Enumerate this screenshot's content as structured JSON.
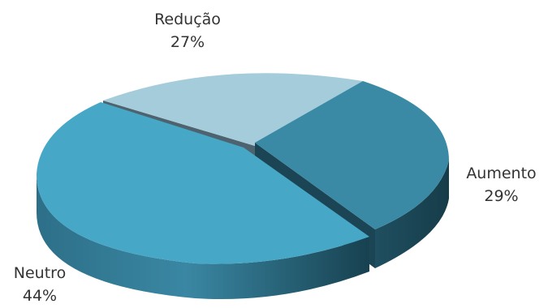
{
  "chart_data": {
    "type": "pie",
    "style": "3d-exploded",
    "title": "",
    "slices": [
      {
        "label": "Redução",
        "value": 27,
        "display": "27%",
        "color": "#a5ccda"
      },
      {
        "label": "Aumento",
        "value": 29,
        "display": "29%",
        "color": "#3a8aa6"
      },
      {
        "label": "Neutro",
        "value": 44,
        "display": "44%",
        "color": "#46a7c6"
      }
    ]
  }
}
